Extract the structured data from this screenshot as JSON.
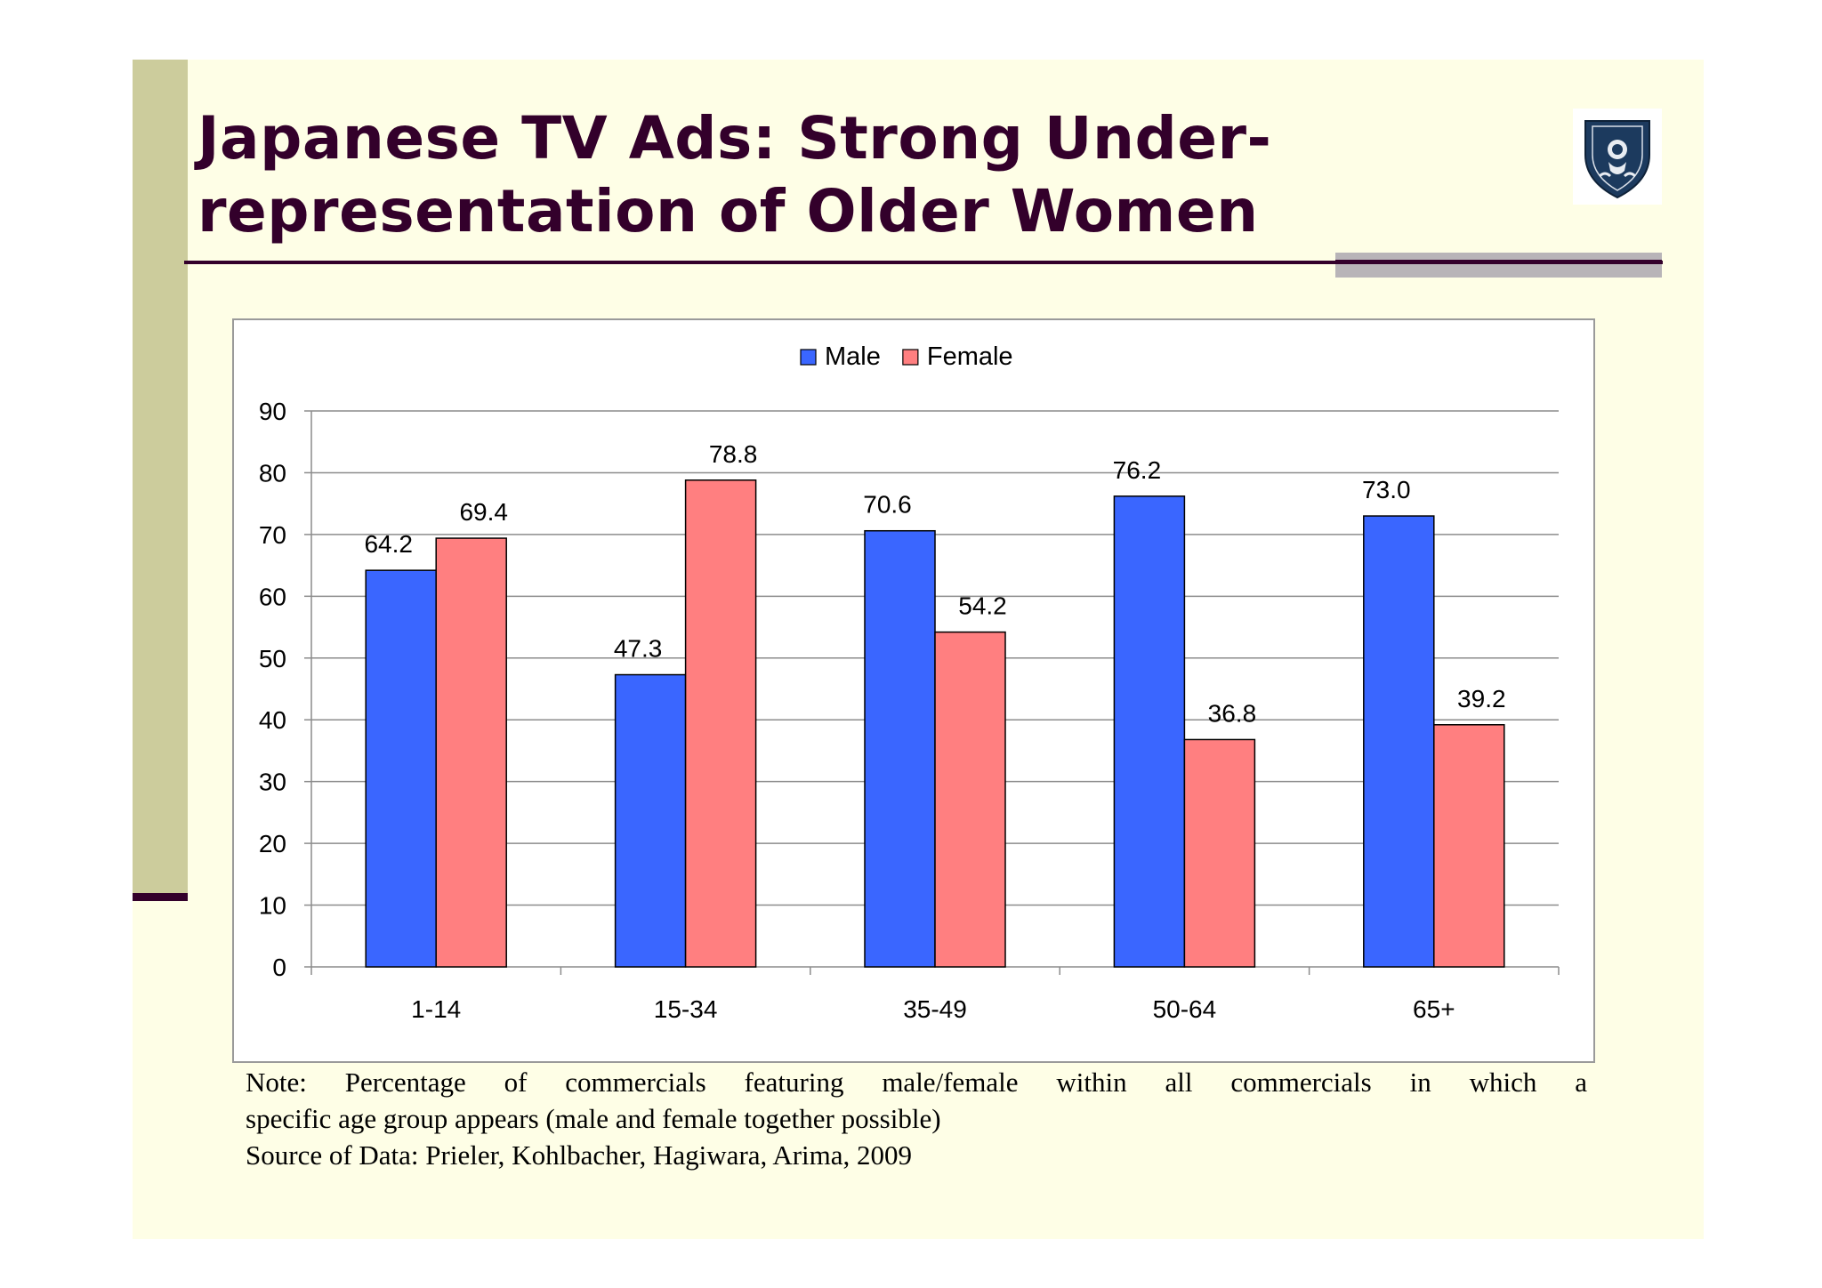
{
  "slide": {
    "title_lines": [
      "Japanese TV Ads: Strong Under-",
      "representation of Older Women"
    ],
    "note_lines": [
      "Note: Percentage of commercials featuring male/female within all commercials in which a",
      "specific age group appears (male and female together possible)",
      "Source of Data: Prieler, Kohlbacher, Hagiwara, Arima, 2009"
    ],
    "logo_icon": "shield-crest-icon"
  },
  "colors": {
    "title": "#33002b",
    "background": "#fefee6",
    "sidebar": "#cccc9c",
    "male": "#3a66ff",
    "female": "#ff7f80"
  },
  "chart_data": {
    "type": "bar",
    "title": "",
    "xlabel": "",
    "ylabel": "",
    "categories": [
      "1-14",
      "15-34",
      "35-49",
      "50-64",
      "65+"
    ],
    "series": [
      {
        "name": "Male",
        "color": "#3a66ff",
        "values": [
          64.2,
          47.3,
          70.6,
          76.2,
          73.0
        ],
        "labels": [
          "64.2",
          "47.3",
          "70.6",
          "76.2",
          "73.0"
        ]
      },
      {
        "name": "Female",
        "color": "#ff7f80",
        "values": [
          69.4,
          78.8,
          54.2,
          36.8,
          39.2
        ],
        "labels": [
          "69.4",
          "78.8",
          "54.2",
          "36.8",
          "39.2"
        ]
      }
    ],
    "ylim": [
      0,
      90
    ],
    "yticks": [
      0,
      10,
      20,
      30,
      40,
      50,
      60,
      70,
      80,
      90
    ],
    "ytick_labels": [
      "0",
      "10",
      "20",
      "30",
      "40",
      "50",
      "60",
      "70",
      "80",
      "90"
    ],
    "grid": true,
    "legend": "top-center"
  }
}
